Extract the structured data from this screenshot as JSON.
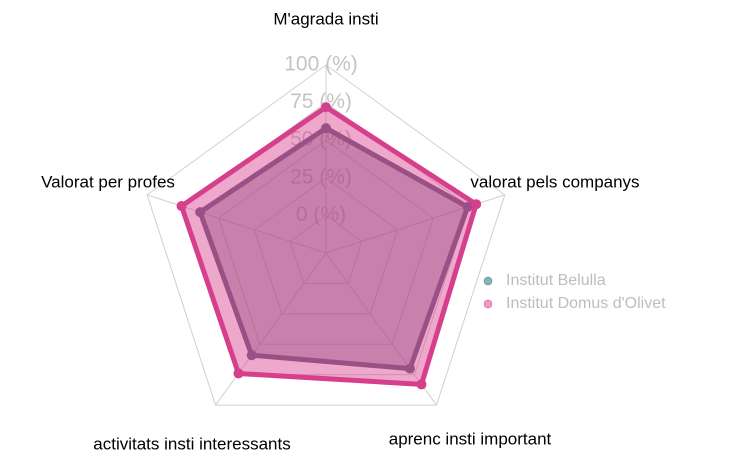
{
  "chart_data": {
    "type": "radar",
    "categories": [
      "M'agrada insti",
      "valorat pels companys",
      "aprenc insti important",
      "activitats insti interessants",
      "Valorat per profes"
    ],
    "series": [
      {
        "name": "Institut Belulla",
        "color": "#6b5f80",
        "legend_color": "#5fa8a4",
        "values": [
          58,
          74,
          70,
          59,
          63
        ]
      },
      {
        "name": "Institut Domus d'Olivet",
        "color": "#d63f8c",
        "legend_color": "#e27fb5",
        "values": [
          72,
          80,
          83,
          74,
          76
        ]
      }
    ],
    "ylim": [
      -25,
      100
    ],
    "yticks": [
      {
        "value": 0,
        "label": "0 (%)"
      },
      {
        "value": 25,
        "label": "25 (%)"
      },
      {
        "value": 50,
        "label": "50 (%)"
      },
      {
        "value": 75,
        "label": "75 (%)"
      },
      {
        "value": 100,
        "label": "100 (%)"
      }
    ],
    "grid": true,
    "legend": "right"
  }
}
